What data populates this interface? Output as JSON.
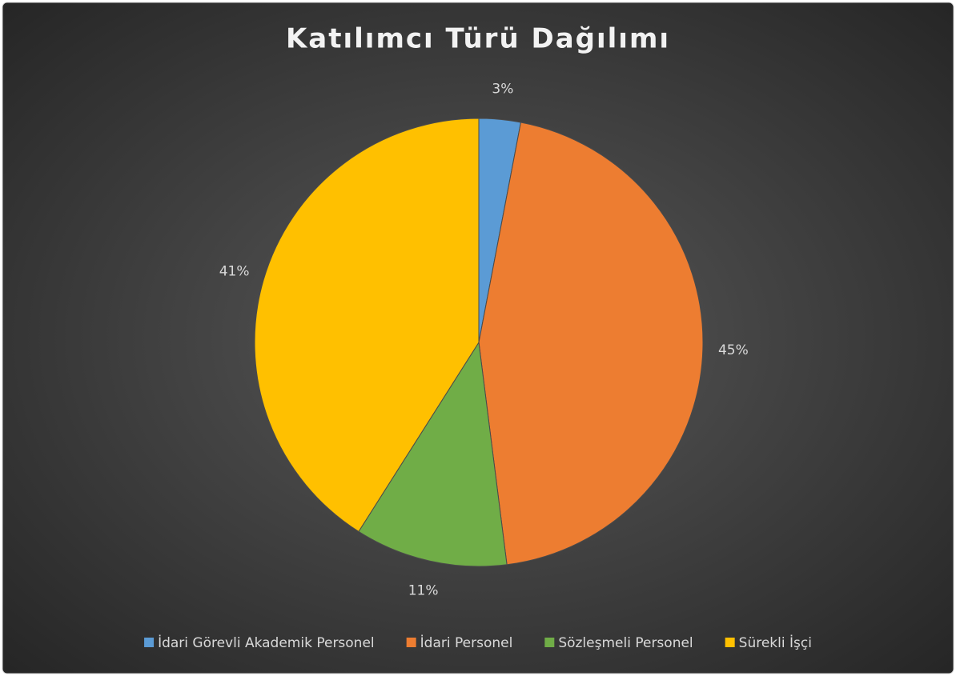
{
  "chart_data": {
    "type": "pie",
    "title": "Katılımcı Türü Dağılımı",
    "categories": [
      "İdari Görevli Akademik Personel",
      "İdari Personel",
      "Sözleşmeli Personel",
      "Sürekli İşçi"
    ],
    "values": [
      3,
      45,
      11,
      41
    ],
    "value_labels": [
      "3%",
      "45%",
      "11%",
      "41%"
    ],
    "colors": [
      "#5b9bd5",
      "#ed7d31",
      "#70ad47",
      "#ffc000"
    ],
    "legend": "bottom"
  }
}
